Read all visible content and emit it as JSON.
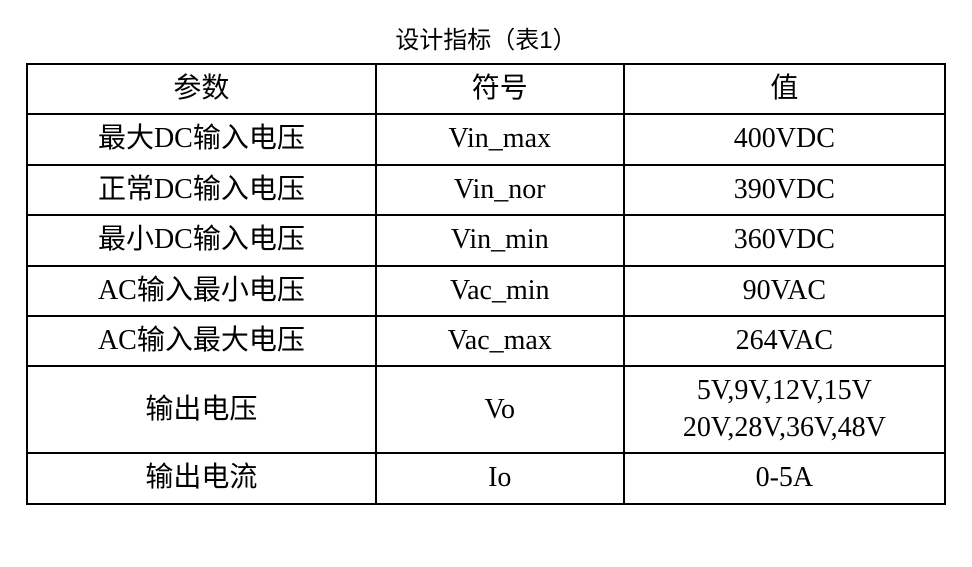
{
  "table": {
    "title": "设计指标（表1）",
    "title_fontsize": 24,
    "title_color": "#000000",
    "background_color": "#ffffff",
    "border_color": "#000000",
    "border_width": 2,
    "cell_fontsize": 28,
    "cell_text_color": "#000000",
    "column_widths_percent": [
      38,
      27,
      35
    ],
    "columns": [
      "参数",
      "符号",
      "值"
    ],
    "rows": [
      [
        "最大DC输入电压",
        "Vin_max",
        "400VDC"
      ],
      [
        "正常DC输入电压",
        "Vin_nor",
        "390VDC"
      ],
      [
        "最小DC输入电压",
        "Vin_min",
        "360VDC"
      ],
      [
        "AC输入最小电压",
        "Vac_min",
        "90VAC"
      ],
      [
        "AC输入最大电压",
        "Vac_max",
        "264VAC"
      ],
      [
        "输出电压",
        "Vo",
        "5V,9V,12V,15V\n20V,28V,36V,48V"
      ],
      [
        "输出电流",
        "Io",
        "0-5A"
      ]
    ]
  }
}
